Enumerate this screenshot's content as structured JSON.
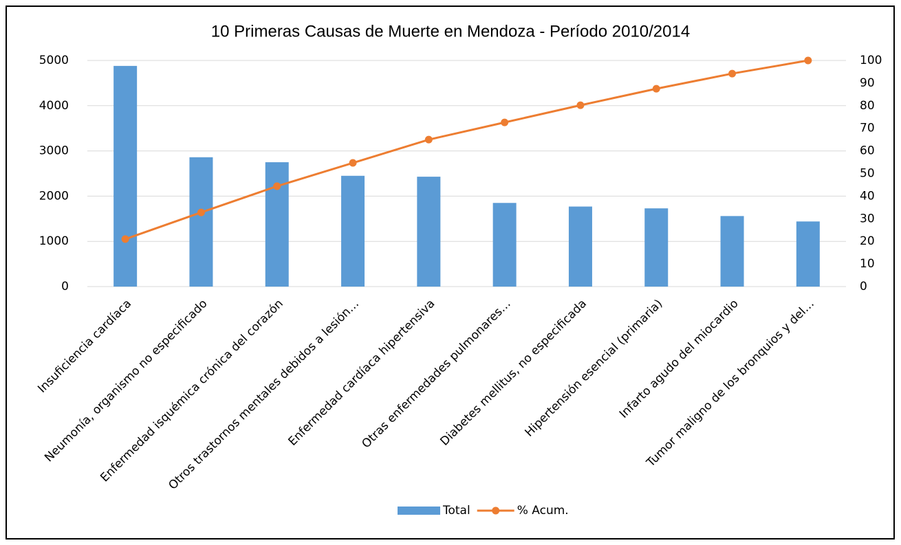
{
  "chart_data": {
    "type": "bar",
    "title": "10 Primeras Causas de Muerte en Mendoza - Período 2010/2014",
    "categories": [
      "Insuficiencia cardíaca",
      "Neumonía, organismo no especificado",
      "Enfermedad isquémica crónica del corazón",
      "Otros trastornos mentales debidos a lesión…",
      "Enfermedad cardíaca hipertensiva",
      "Otras enfermedades pulmonares…",
      "Diabetes mellitus, no especificada",
      "Hipertensión esencial (primaria)",
      "Infarto agudo del miocardio",
      "Tumor maligno de los bronquios y del…"
    ],
    "series": [
      {
        "name": "Total",
        "type": "bar",
        "color": "#5b9bd5",
        "values": [
          4880,
          2860,
          2750,
          2450,
          2430,
          1850,
          1770,
          1730,
          1560,
          1440
        ]
      },
      {
        "name": "% Acum.",
        "type": "line",
        "axis": "y2",
        "color": "#ed7d31",
        "values": [
          21,
          32.8,
          44.4,
          54.7,
          65,
          72.6,
          80.2,
          87.5,
          94.2,
          100
        ]
      }
    ],
    "ylim": [
      0,
      5000
    ],
    "yticks": [
      0,
      1000,
      2000,
      3000,
      4000,
      5000
    ],
    "y2lim": [
      0,
      100
    ],
    "y2ticks": [
      0,
      10,
      20,
      30,
      40,
      50,
      60,
      70,
      80,
      90,
      100
    ],
    "grid": true,
    "legend": "bottom"
  }
}
